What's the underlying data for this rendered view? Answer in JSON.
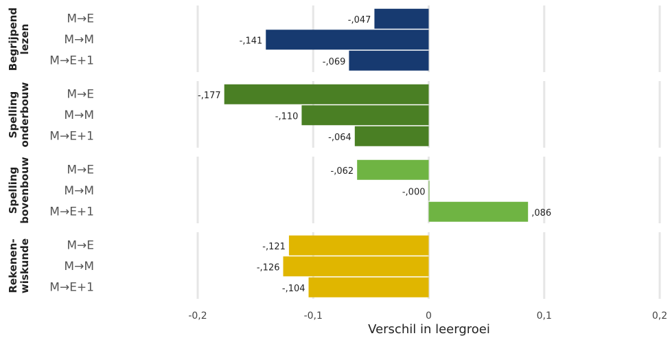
{
  "chart_data": {
    "type": "bar",
    "orientation": "horizontal",
    "x_label": "Verschil in leergroei",
    "xlim": [
      -0.2,
      0.2
    ],
    "xticks": [
      {
        "value": -0.2,
        "label": "-0,2"
      },
      {
        "value": -0.1,
        "label": "-0,1"
      },
      0,
      {
        "value": 0.1,
        "label": "0,1"
      },
      {
        "value": 0.2,
        "label": "0,2"
      }
    ],
    "grid": true,
    "panels": [
      {
        "name": "Begrijpend\nlezen",
        "color": "#173a70",
        "categories": [
          "M→E",
          "M→M",
          "M→E+1"
        ],
        "values": [
          -0.047,
          -0.141,
          -0.069
        ],
        "value_labels": [
          "-,047",
          "-,141",
          "-,069"
        ]
      },
      {
        "name": "Spelling\nonderbouw",
        "color": "#4a7f24",
        "categories": [
          "M→E",
          "M→M",
          "M→E+1"
        ],
        "values": [
          -0.177,
          -0.11,
          -0.064
        ],
        "value_labels": [
          "-,177",
          "-,110",
          "-,064"
        ]
      },
      {
        "name": "Spelling\nbovenbouw",
        "color": "#6fb443",
        "categories": [
          "M→E",
          "M→M",
          "M→E+1"
        ],
        "values": [
          -0.062,
          0,
          0.086
        ],
        "value_labels": [
          "-,062",
          "-,000",
          ",086"
        ]
      },
      {
        "name": "Rekenen-\nwiskunde",
        "color": "#e0b600",
        "categories": [
          "M→E",
          "M→M",
          "M→E+1"
        ],
        "values": [
          -0.121,
          -0.126,
          -0.104
        ],
        "value_labels": [
          "-,121",
          "-,126",
          "-,104"
        ]
      }
    ]
  }
}
